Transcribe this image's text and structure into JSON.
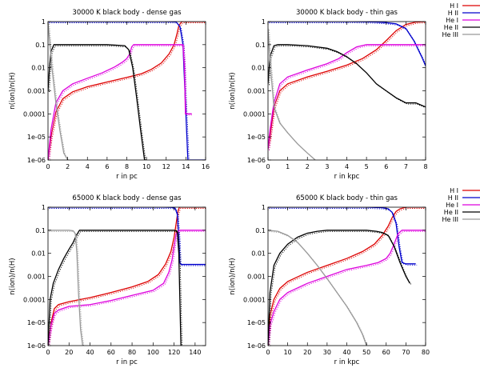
{
  "chart_data": [
    {
      "type": "line",
      "title": "30000 K black body - dense gas",
      "xlabel": "r in pc",
      "ylabel": "n(ion)/n(H)",
      "xlim": [
        0,
        16
      ],
      "ylim": [
        1e-06,
        1
      ],
      "yscale": "log",
      "xticks": [
        0,
        2,
        4,
        6,
        8,
        10,
        12,
        14,
        16
      ],
      "xtick_labels": [
        "0",
        "2",
        "4",
        "6",
        "8",
        "10",
        "12",
        "14",
        "16"
      ],
      "yticks": [
        1e-06,
        1e-05,
        0.0001,
        0.001,
        0.01,
        0.1,
        1
      ],
      "ytick_labels": [
        "1e-06",
        "1e-05",
        "0.0001",
        "0.001",
        "0.01",
        "0.1",
        "1"
      ],
      "legend": "none",
      "series": [
        {
          "name": "H I",
          "color": "#dd0000",
          "x": [
            0,
            0.3,
            0.8,
            1.5,
            2.5,
            4,
            6,
            8,
            9.5,
            10.5,
            11.5,
            12.3,
            12.8,
            13.1,
            13.3,
            13.6,
            16
          ],
          "y": [
            1e-06,
            1e-05,
            0.00012,
            0.00045,
            0.0009,
            0.0015,
            0.0024,
            0.0038,
            0.0055,
            0.0085,
            0.016,
            0.04,
            0.1,
            0.3,
            0.7,
            1,
            1
          ]
        },
        {
          "name": "H II",
          "color": "#0000cc",
          "x": [
            0,
            12,
            13,
            13.4,
            13.7,
            13.9,
            14.2,
            16
          ],
          "y": [
            1,
            1,
            0.97,
            0.6,
            0.1,
            0.001,
            1e-06,
            1e-06
          ]
        },
        {
          "name": "He I",
          "color": "#dd00dd",
          "x": [
            0,
            0.3,
            0.8,
            1.5,
            2.5,
            4,
            5.5,
            6.8,
            7.6,
            8.0,
            8.3,
            8.5,
            8.7,
            13.7,
            13.85,
            13.95,
            14.6
          ],
          "y": [
            1e-06,
            2e-05,
            0.0003,
            0.001,
            0.002,
            0.0035,
            0.006,
            0.011,
            0.018,
            0.025,
            0.04,
            0.08,
            0.1,
            0.1,
            0.01,
            0.0001,
            0.0001
          ]
        },
        {
          "name": "He II",
          "color": "#000000",
          "x": [
            0,
            0.15,
            0.3,
            0.6,
            2,
            6,
            7.8,
            8.2,
            8.6,
            9.0,
            9.4,
            9.8,
            10.0
          ],
          "y": [
            0.001,
            0.01,
            0.05,
            0.1,
            0.1,
            0.1,
            0.09,
            0.06,
            0.01,
            0.0005,
            2e-05,
            1e-06,
            1e-06
          ]
        },
        {
          "name": "He III",
          "color": "#999999",
          "x": [
            0,
            0.4,
            0.8,
            1.2,
            1.6,
            2.0
          ],
          "y": [
            0.9,
            0.01,
            0.0003,
            2e-05,
            2e-06,
            1e-06
          ]
        }
      ]
    },
    {
      "type": "line",
      "title": "30000 K black body - thin gas",
      "xlabel": "r in kpc",
      "ylabel": "n(ion)/n(H)",
      "xlim": [
        0,
        8
      ],
      "ylim": [
        1e-06,
        1
      ],
      "yscale": "log",
      "xticks": [
        0,
        1,
        2,
        3,
        4,
        5,
        6,
        7,
        8
      ],
      "xtick_labels": [
        "0",
        "1",
        "2",
        "3",
        "4",
        "5",
        "6",
        "7",
        "8"
      ],
      "yticks": [
        1e-06,
        1e-05,
        0.0001,
        0.001,
        0.01,
        0.1,
        1
      ],
      "ytick_labels": [
        "1e-06",
        "1e-05",
        "0.0001",
        "0.001",
        "0.01",
        "0.1",
        "1"
      ],
      "legend": "right",
      "series": [
        {
          "name": "H I",
          "color": "#dd0000",
          "x": [
            0,
            0.1,
            0.3,
            0.6,
            1,
            2,
            3,
            4,
            4.8,
            5.5,
            6,
            6.5,
            7,
            7.5,
            8
          ],
          "y": [
            3e-06,
            1e-05,
            0.0002,
            0.001,
            0.002,
            0.004,
            0.007,
            0.013,
            0.025,
            0.06,
            0.15,
            0.4,
            0.75,
            0.95,
            1
          ]
        },
        {
          "name": "H II",
          "color": "#0000cc",
          "x": [
            0,
            4,
            5,
            5.5,
            6,
            6.5,
            7,
            7.4,
            7.8,
            8
          ],
          "y": [
            1,
            1,
            0.98,
            0.95,
            0.9,
            0.8,
            0.5,
            0.15,
            0.03,
            0.012
          ]
        },
        {
          "name": "He I",
          "color": "#dd00dd",
          "x": [
            0,
            0.1,
            0.3,
            0.6,
            1,
            2,
            3,
            3.6,
            4,
            4.5,
            5,
            5.5,
            6,
            8
          ],
          "y": [
            3e-06,
            2e-05,
            0.0003,
            0.002,
            0.004,
            0.008,
            0.015,
            0.025,
            0.045,
            0.08,
            0.1,
            0.1,
            0.1,
            0.1
          ]
        },
        {
          "name": "He II",
          "color": "#000000",
          "x": [
            0,
            0.1,
            0.3,
            0.5,
            1,
            2,
            3,
            3.5,
            4,
            4.5,
            5,
            5.5,
            6,
            6.5,
            7,
            7.5,
            8
          ],
          "y": [
            0.002,
            0.03,
            0.09,
            0.1,
            0.1,
            0.09,
            0.07,
            0.05,
            0.03,
            0.015,
            0.006,
            0.002,
            0.001,
            0.0005,
            0.0003,
            0.0003,
            0.0002
          ]
        },
        {
          "name": "He III",
          "color": "#999999",
          "x": [
            0,
            0.1,
            0.3,
            0.6,
            1,
            1.5,
            2,
            2.4
          ],
          "y": [
            0.5,
            0.02,
            0.0002,
            4e-05,
            1.5e-05,
            5e-06,
            2e-06,
            1e-06
          ]
        }
      ]
    },
    {
      "type": "line",
      "title": "65000 K black body - dense gas",
      "xlabel": "r in pc",
      "ylabel": "n(ion)/n(H)",
      "xlim": [
        0,
        150
      ],
      "ylim": [
        1e-06,
        1
      ],
      "yscale": "log",
      "xticks": [
        0,
        20,
        40,
        60,
        80,
        100,
        120,
        140
      ],
      "xtick_labels": [
        "0",
        "20",
        "40",
        "60",
        "80",
        "100",
        "120",
        "140"
      ],
      "yticks": [
        1e-06,
        1e-05,
        0.0001,
        0.001,
        0.01,
        0.1,
        1
      ],
      "ytick_labels": [
        "1e-06",
        "1e-05",
        "0.0001",
        "0.001",
        "0.01",
        "0.1",
        "1"
      ],
      "legend": "none",
      "series": [
        {
          "name": "H I",
          "color": "#dd0000",
          "x": [
            0,
            3,
            6,
            10,
            20,
            40,
            60,
            80,
            95,
            105,
            112,
            117,
            120,
            122,
            123.5,
            125,
            150
          ],
          "y": [
            1e-06,
            1e-05,
            4e-05,
            6e-05,
            8e-05,
            0.00012,
            0.0002,
            0.00035,
            0.0006,
            0.0012,
            0.0035,
            0.012,
            0.05,
            0.2,
            0.6,
            1,
            1
          ]
        },
        {
          "name": "H II",
          "color": "#0000cc",
          "x": [
            0,
            110,
            118,
            121,
            123,
            124.5,
            125.5,
            126.5,
            150
          ],
          "y": [
            1,
            1,
            0.98,
            0.9,
            0.5,
            0.05,
            0.004,
            0.0033,
            0.0033
          ]
        },
        {
          "name": "He I",
          "color": "#dd00dd",
          "x": [
            0,
            3,
            6,
            10,
            20,
            40,
            60,
            80,
            100,
            110,
            115,
            118,
            120,
            122,
            125,
            150
          ],
          "y": [
            1e-06,
            8e-06,
            2.5e-05,
            3.5e-05,
            5e-05,
            6e-05,
            9e-05,
            0.00015,
            0.00025,
            0.0005,
            0.0015,
            0.005,
            0.02,
            0.07,
            0.1,
            0.1
          ]
        },
        {
          "name": "He II",
          "color": "#000000",
          "x": [
            0,
            2,
            5,
            10,
            15,
            20,
            24,
            27,
            30,
            40,
            60,
            80,
            100,
            115,
            120,
            123,
            124.5,
            125.5,
            126.5
          ],
          "y": [
            1e-06,
            0.0001,
            0.0005,
            0.002,
            0.006,
            0.015,
            0.03,
            0.06,
            0.1,
            0.1,
            0.1,
            0.1,
            0.1,
            0.1,
            0.1,
            0.09,
            0.01,
            0.0001,
            1e-06
          ]
        },
        {
          "name": "He III",
          "color": "#999999",
          "x": [
            0,
            10,
            20,
            24,
            26,
            27.5,
            29,
            31,
            33
          ],
          "y": [
            0.1,
            0.1,
            0.1,
            0.095,
            0.07,
            0.01,
            0.0002,
            5e-06,
            1e-06
          ]
        }
      ]
    },
    {
      "type": "line",
      "title": "65000 K black body - thin gas",
      "xlabel": "r in kpc",
      "ylabel": "n(ion)/n(H)",
      "xlim": [
        0,
        80
      ],
      "ylim": [
        1e-06,
        1
      ],
      "yscale": "log",
      "xticks": [
        0,
        10,
        20,
        30,
        40,
        50,
        60,
        70,
        80
      ],
      "xtick_labels": [
        "0",
        "10",
        "20",
        "30",
        "40",
        "50",
        "60",
        "70",
        "80"
      ],
      "yticks": [
        1e-06,
        1e-05,
        0.0001,
        0.001,
        0.01,
        0.1,
        1
      ],
      "ytick_labels": [
        "1e-06",
        "1e-05",
        "0.0001",
        "0.001",
        "0.01",
        "0.1",
        "1"
      ],
      "legend": "right",
      "series": [
        {
          "name": "H I",
          "color": "#dd0000",
          "x": [
            0,
            1,
            3,
            6,
            10,
            20,
            30,
            40,
            48,
            54,
            58,
            61,
            63,
            65,
            67,
            70,
            80
          ],
          "y": [
            1e-06,
            2e-05,
            0.0001,
            0.0003,
            0.0006,
            0.0015,
            0.003,
            0.006,
            0.012,
            0.025,
            0.06,
            0.15,
            0.35,
            0.65,
            0.85,
            1,
            1
          ]
        },
        {
          "name": "H II",
          "color": "#0000cc",
          "x": [
            0,
            50,
            58,
            61,
            63,
            65,
            66.5,
            68,
            70,
            75
          ],
          "y": [
            1,
            1,
            0.95,
            0.85,
            0.6,
            0.2,
            0.02,
            0.004,
            0.0035,
            0.0035
          ]
        },
        {
          "name": "He I",
          "color": "#dd00dd",
          "x": [
            0,
            1,
            3,
            6,
            10,
            20,
            30,
            40,
            50,
            56,
            60,
            62,
            64,
            66,
            68,
            70,
            80
          ],
          "y": [
            1e-06,
            8e-06,
            3e-05,
            0.0001,
            0.0002,
            0.0005,
            0.001,
            0.002,
            0.003,
            0.004,
            0.006,
            0.01,
            0.025,
            0.07,
            0.1,
            0.1,
            0.1
          ]
        },
        {
          "name": "He II",
          "color": "#000000",
          "x": [
            0,
            1,
            3,
            6,
            10,
            15,
            20,
            25,
            30,
            40,
            50,
            55,
            58,
            61,
            64,
            67,
            70,
            72
          ],
          "y": [
            1e-06,
            0.0002,
            0.003,
            0.01,
            0.025,
            0.05,
            0.075,
            0.09,
            0.1,
            0.1,
            0.1,
            0.09,
            0.08,
            0.06,
            0.02,
            0.004,
            0.001,
            0.0005
          ]
        },
        {
          "name": "He III",
          "color": "#999999",
          "x": [
            0,
            5,
            10,
            15,
            20,
            25,
            30,
            35,
            40,
            45,
            48,
            50
          ],
          "y": [
            0.1,
            0.09,
            0.06,
            0.03,
            0.01,
            0.003,
            0.0008,
            0.0002,
            5e-05,
            1e-05,
            3e-06,
            1e-06
          ]
        }
      ]
    }
  ],
  "legend_entries": [
    "H I",
    "H II",
    "He I",
    "He II",
    "He III"
  ]
}
